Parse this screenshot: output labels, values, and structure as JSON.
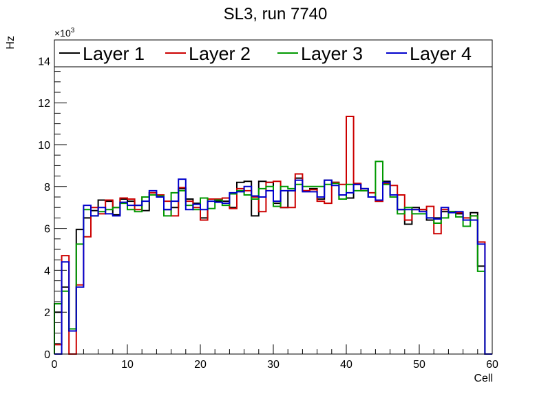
{
  "chart_data": {
    "type": "line",
    "style": "step-histogram",
    "title": "SL3, run 7740",
    "xlabel": "Cell",
    "ylabel": "Hz",
    "y_multiplier": "×10",
    "y_multiplier_exp": "3",
    "xlim": [
      0,
      60
    ],
    "ylim": [
      0,
      15
    ],
    "x_ticks": [
      0,
      10,
      20,
      30,
      40,
      50,
      60
    ],
    "y_ticks": [
      0,
      2,
      4,
      6,
      8,
      10,
      12,
      14
    ],
    "grid": false,
    "legend_position": "top",
    "bin_width": 1,
    "series": [
      {
        "name": "Layer 1",
        "color": "#000000",
        "values": [
          2.0,
          3.2,
          1.1,
          5.95,
          6.5,
          6.85,
          7.35,
          7.3,
          6.65,
          7.4,
          7.3,
          7.1,
          6.85,
          7.7,
          7.55,
          6.9,
          7.0,
          7.9,
          7.4,
          7.2,
          6.5,
          7.4,
          7.3,
          7.3,
          7.0,
          8.2,
          8.25,
          6.6,
          8.25,
          8.2,
          7.2,
          7.0,
          7.8,
          8.4,
          7.8,
          7.9,
          7.4,
          8.3,
          8.2,
          7.4,
          7.45,
          8.1,
          7.9,
          7.5,
          7.3,
          8.25,
          7.6,
          6.9,
          6.2,
          7.0,
          6.9,
          6.4,
          6.5,
          6.8,
          6.8,
          6.7,
          6.4,
          6.75,
          4.2,
          0
        ]
      },
      {
        "name": "Layer 2",
        "color": "#cc0000",
        "values": [
          0.45,
          4.7,
          0,
          3.3,
          5.6,
          7.0,
          6.7,
          7.35,
          7.0,
          7.45,
          7.4,
          6.9,
          7.5,
          7.7,
          7.6,
          7.3,
          6.6,
          7.95,
          7.3,
          7.0,
          6.4,
          7.4,
          7.4,
          7.45,
          6.95,
          7.9,
          7.8,
          7.5,
          6.8,
          8.2,
          8.25,
          7.0,
          7.0,
          8.6,
          7.8,
          7.85,
          7.3,
          7.2,
          8.2,
          8.1,
          11.35,
          8.15,
          7.8,
          7.7,
          7.3,
          8.15,
          8.05,
          7.6,
          6.4,
          6.9,
          6.9,
          7.05,
          5.75,
          6.9,
          6.8,
          6.75,
          6.5,
          6.6,
          5.35,
          0
        ]
      },
      {
        "name": "Layer 3",
        "color": "#009900",
        "values": [
          2.4,
          3.0,
          1.2,
          5.25,
          6.9,
          6.6,
          6.8,
          6.9,
          7.0,
          7.2,
          6.9,
          6.8,
          7.5,
          7.6,
          7.55,
          6.6,
          7.7,
          7.8,
          7.1,
          6.9,
          7.45,
          6.95,
          7.35,
          7.1,
          7.65,
          7.8,
          7.6,
          7.4,
          7.9,
          8.0,
          7.05,
          8.0,
          7.9,
          8.1,
          8.0,
          8.0,
          8.0,
          8.1,
          8.15,
          7.4,
          8.1,
          7.8,
          7.8,
          7.5,
          9.2,
          8.1,
          7.5,
          6.7,
          7.0,
          6.7,
          6.7,
          6.5,
          6.25,
          6.5,
          6.8,
          6.55,
          6.1,
          6.6,
          3.95,
          0
        ]
      },
      {
        "name": "Layer 4",
        "color": "#0000cc",
        "values": [
          0,
          4.4,
          1.1,
          3.2,
          7.1,
          6.6,
          7.0,
          6.7,
          6.6,
          7.25,
          7.1,
          7.1,
          7.3,
          7.8,
          7.5,
          6.9,
          7.3,
          8.35,
          6.9,
          7.15,
          6.9,
          7.3,
          7.25,
          7.2,
          7.7,
          7.75,
          8.0,
          7.55,
          7.5,
          7.8,
          7.3,
          7.8,
          7.8,
          8.3,
          7.75,
          7.75,
          7.5,
          8.3,
          8.05,
          7.6,
          7.7,
          8.1,
          7.9,
          7.5,
          7.35,
          8.2,
          7.6,
          6.9,
          6.9,
          6.9,
          6.8,
          6.5,
          6.45,
          7.0,
          6.75,
          6.8,
          6.4,
          6.4,
          5.25,
          0
        ]
      }
    ]
  }
}
